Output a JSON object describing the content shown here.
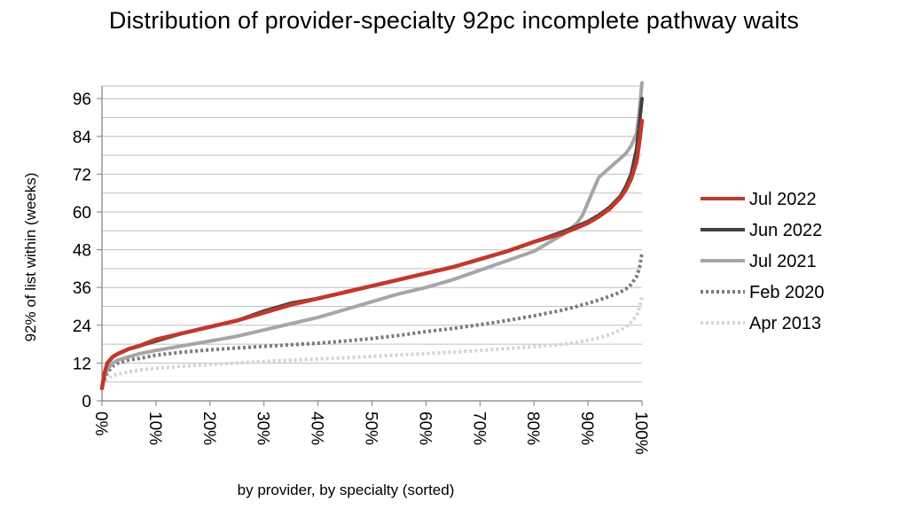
{
  "chart_data": {
    "type": "line",
    "title": "Distribution of provider-specialty 92pc incomplete pathway waits",
    "xlabel": "by provider, by specialty (sorted)",
    "ylabel": "92% of list within (weeks)",
    "xlim": [
      0,
      100
    ],
    "ylim": [
      0,
      100
    ],
    "x_ticks": [
      "0%",
      "10%",
      "20%",
      "30%",
      "40%",
      "50%",
      "60%",
      "70%",
      "80%",
      "90%",
      "100%"
    ],
    "y_ticks": [
      0,
      12,
      24,
      36,
      48,
      60,
      72,
      84,
      96
    ],
    "grid": "horizontal",
    "legend_position": "right",
    "series": [
      {
        "name": "Jun 2022",
        "color": "#404040",
        "style": "solid",
        "x": [
          0,
          0.5,
          1,
          2,
          3,
          5,
          7,
          10,
          15,
          20,
          25,
          30,
          35,
          40,
          45,
          50,
          55,
          60,
          65,
          70,
          75,
          80,
          85,
          88,
          90,
          92,
          94,
          96,
          97,
          98,
          99,
          99.5,
          100
        ],
        "y": [
          4,
          9,
          12,
          14,
          15,
          16.5,
          17.5,
          19,
          21.5,
          23.5,
          25.5,
          28.5,
          31,
          32.5,
          34.5,
          36.5,
          38.5,
          40.5,
          42.5,
          45,
          47.5,
          50.5,
          53.5,
          55.5,
          57,
          59,
          61.5,
          65,
          68,
          72,
          80,
          88,
          96
        ]
      },
      {
        "name": "Jul 2022",
        "color": "#c0392b",
        "style": "solid",
        "x": [
          0,
          0.5,
          1,
          2,
          3,
          5,
          7,
          10,
          15,
          20,
          25,
          30,
          35,
          40,
          45,
          50,
          55,
          60,
          65,
          70,
          75,
          80,
          85,
          88,
          90,
          92,
          94,
          96,
          97,
          98,
          99,
          99.5,
          100
        ],
        "y": [
          4,
          9,
          12,
          14,
          15,
          16.5,
          17.5,
          19.5,
          21.5,
          23.5,
          25.5,
          28,
          30.5,
          32.5,
          34.5,
          36.5,
          38.5,
          40.5,
          42.5,
          45,
          47.5,
          50.5,
          53,
          55,
          56.5,
          58.5,
          61,
          64.5,
          67,
          70.5,
          76,
          82,
          89
        ]
      },
      {
        "name": "Jul 2021",
        "color": "#a6a6a6",
        "style": "solid",
        "x": [
          0,
          0.5,
          1,
          2,
          3,
          5,
          7,
          10,
          15,
          20,
          25,
          30,
          35,
          40,
          45,
          50,
          55,
          60,
          65,
          70,
          75,
          80,
          83,
          86,
          88,
          89,
          90,
          91,
          92,
          94,
          96,
          97,
          98,
          99,
          99.5,
          100
        ],
        "y": [
          4,
          8,
          10,
          12,
          13,
          14,
          15,
          16,
          17.5,
          19,
          20.5,
          22.5,
          24.5,
          26.5,
          29,
          31.5,
          34,
          36,
          38.5,
          41.5,
          44.5,
          47.5,
          50.5,
          53.5,
          56.5,
          59,
          63,
          67,
          71,
          74,
          77,
          78.5,
          81,
          85,
          92,
          101
        ]
      },
      {
        "name": "Feb 2020",
        "color": "#7a7a7a",
        "style": "dotted",
        "x": [
          0,
          0.5,
          1,
          2,
          3,
          5,
          7,
          10,
          15,
          20,
          25,
          30,
          35,
          40,
          45,
          50,
          55,
          60,
          65,
          70,
          75,
          80,
          85,
          88,
          90,
          92,
          94,
          96,
          97,
          98,
          99,
          99.5,
          100
        ],
        "y": [
          5,
          7,
          9,
          11,
          12,
          13,
          13.5,
          14.5,
          15.5,
          16.2,
          16.8,
          17.3,
          17.8,
          18.3,
          19,
          19.8,
          20.8,
          22,
          23,
          24.2,
          25.5,
          27,
          28.7,
          30,
          31,
          32,
          33.2,
          34.5,
          35.5,
          37,
          39.5,
          42,
          47
        ]
      },
      {
        "name": "Apr 2013",
        "color": "#d4d4d4",
        "style": "dotted",
        "x": [
          0,
          0.5,
          1,
          2,
          3,
          5,
          7,
          10,
          15,
          20,
          25,
          30,
          35,
          40,
          45,
          50,
          55,
          60,
          65,
          70,
          75,
          80,
          85,
          88,
          90,
          92,
          94,
          96,
          97,
          98,
          99,
          99.5,
          100
        ],
        "y": [
          5,
          6,
          7,
          8,
          8.5,
          9.2,
          9.8,
          10.3,
          11,
          11.5,
          12,
          12.5,
          12.9,
          13.3,
          13.7,
          14.1,
          14.6,
          15,
          15.5,
          16,
          16.6,
          17.2,
          17.9,
          18.6,
          19.2,
          20,
          21,
          22.5,
          23.5,
          25,
          27,
          29.5,
          33
        ]
      }
    ],
    "legend_order": [
      "Jul 2022",
      "Jun 2022",
      "Jul 2021",
      "Feb 2020",
      "Apr 2013"
    ]
  }
}
